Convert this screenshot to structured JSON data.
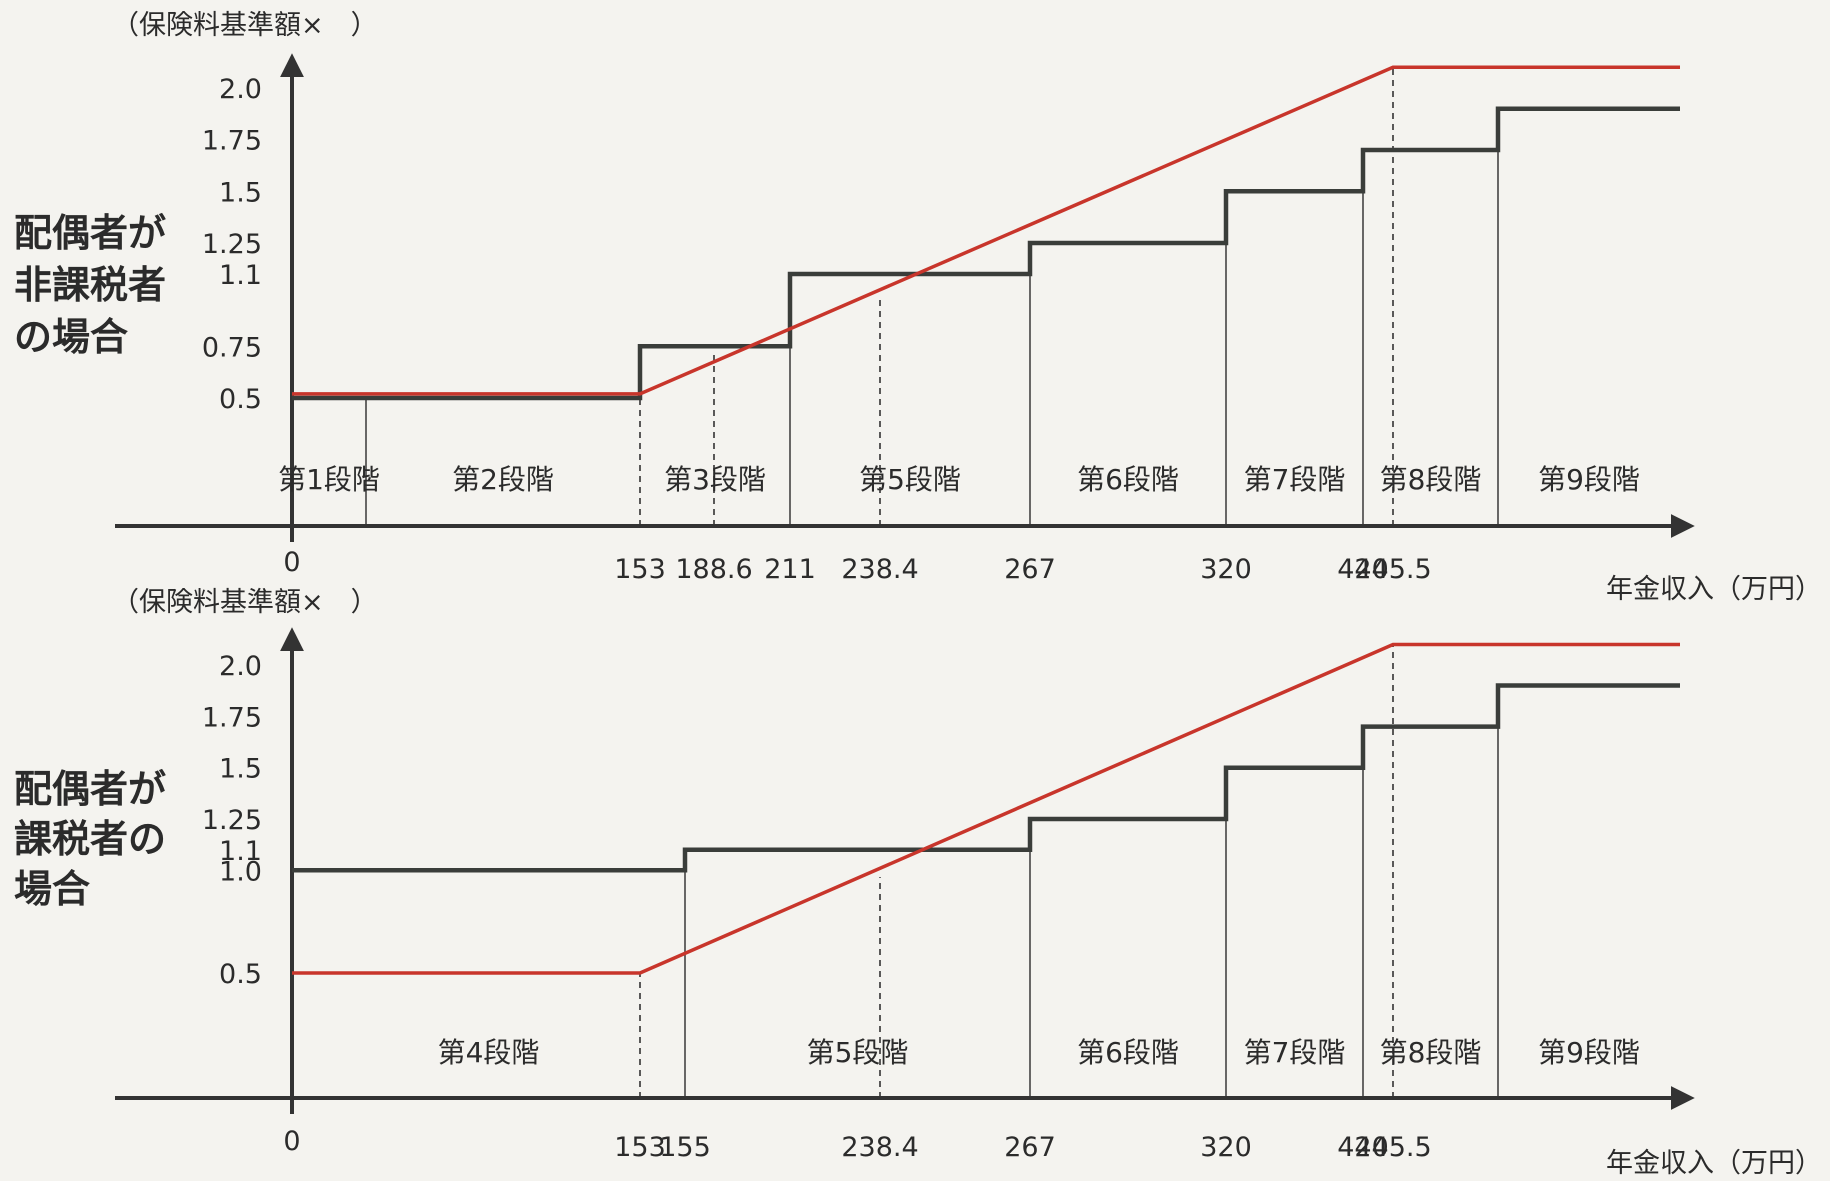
{
  "chart_data": [
    {
      "type": "line",
      "side_label": [
        "配偶者が",
        "非課税者",
        "の場合"
      ],
      "ylabel": "（保険料基準額×　）",
      "xlabel": "年金収入（万円）",
      "y_ticks": [
        {
          "value": 0.5,
          "label": "0.5"
        },
        {
          "value": 0.75,
          "label": "0.75"
        },
        {
          "value": 1.1,
          "label": "1.1"
        },
        {
          "value": 1.25,
          "label": "1.25"
        },
        {
          "value": 1.5,
          "label": "1.5"
        },
        {
          "value": 1.75,
          "label": "1.75"
        },
        {
          "value": 2.0,
          "label": "2.0"
        }
      ],
      "x_ticks": [
        {
          "value": 0,
          "label": "0"
        },
        {
          "value": 153,
          "label": "153"
        },
        {
          "value": 188.6,
          "label": "188.6"
        },
        {
          "value": 211,
          "label": "211"
        },
        {
          "value": 238.4,
          "label": "238.4"
        },
        {
          "value": 267,
          "label": "267"
        },
        {
          "value": 320,
          "label": "320"
        },
        {
          "value": 420,
          "label": "420"
        },
        {
          "value": 445.5,
          "label": "445.5"
        }
      ],
      "series": [
        {
          "color": "#3a3d3a",
          "shape": "step",
          "points": [
            [
              0,
              0.5
            ],
            [
              153,
              0.5
            ],
            [
              153,
              0.75
            ],
            [
              211,
              0.75
            ],
            [
              211,
              1.1
            ],
            [
              267,
              1.1
            ],
            [
              267,
              1.25
            ],
            [
              320,
              1.25
            ],
            [
              320,
              1.5
            ],
            [
              420,
              1.5
            ],
            [
              420,
              1.7
            ],
            [
              525,
              1.7
            ],
            [
              525,
              1.9
            ],
            [
              650,
              1.9
            ]
          ]
        },
        {
          "color": "#c8352b",
          "shape": "line",
          "points": [
            [
              0,
              0.52
            ],
            [
              153,
              0.52
            ],
            [
              445.5,
              2.1
            ],
            [
              650,
              2.1
            ]
          ]
        }
      ],
      "stages": [
        {
          "label": "第1段階",
          "from": 0,
          "to": 30
        },
        {
          "label": "第2段階",
          "from": 30,
          "to": 153
        },
        {
          "label": "第3段階",
          "from": 153,
          "to": 211
        },
        {
          "label": "第5段階",
          "from": 211,
          "to": 267
        },
        {
          "label": "第6段階",
          "from": 267,
          "to": 320
        },
        {
          "label": "第7段階",
          "from": 320,
          "to": 420
        },
        {
          "label": "第8段階",
          "from": 420,
          "to": 525
        },
        {
          "label": "第9段階",
          "from": 525,
          "to": 650
        }
      ],
      "dashed_guides": [
        153,
        188.6,
        238.4,
        445.5
      ],
      "solid_guides": [
        30,
        211,
        267,
        320,
        420,
        525
      ]
    },
    {
      "type": "line",
      "side_label": [
        "配偶者が",
        "課税者の",
        "場合"
      ],
      "ylabel": "（保険料基準額×　）",
      "xlabel": "年金収入（万円）",
      "y_ticks": [
        {
          "value": 0.5,
          "label": "0.5"
        },
        {
          "value": 1.0,
          "label": "1.0"
        },
        {
          "value": 1.1,
          "label": "1.1"
        },
        {
          "value": 1.25,
          "label": "1.25"
        },
        {
          "value": 1.5,
          "label": "1.5"
        },
        {
          "value": 1.75,
          "label": "1.75"
        },
        {
          "value": 2.0,
          "label": "2.0"
        }
      ],
      "x_ticks": [
        {
          "value": 0,
          "label": "0"
        },
        {
          "value": 153,
          "label": "153"
        },
        {
          "value": 155,
          "label": "155"
        },
        {
          "value": 238.4,
          "label": "238.4"
        },
        {
          "value": 267,
          "label": "267"
        },
        {
          "value": 320,
          "label": "320"
        },
        {
          "value": 420,
          "label": "420"
        },
        {
          "value": 445.5,
          "label": "445.5"
        }
      ],
      "series": [
        {
          "color": "#3a3d3a",
          "shape": "step",
          "points": [
            [
              0,
              1.0
            ],
            [
              155,
              1.0
            ],
            [
              155,
              1.1
            ],
            [
              267,
              1.1
            ],
            [
              267,
              1.25
            ],
            [
              320,
              1.25
            ],
            [
              320,
              1.5
            ],
            [
              420,
              1.5
            ],
            [
              420,
              1.7
            ],
            [
              525,
              1.7
            ],
            [
              525,
              1.9
            ],
            [
              650,
              1.9
            ]
          ]
        },
        {
          "color": "#c8352b",
          "shape": "line",
          "points": [
            [
              0,
              0.5
            ],
            [
              153,
              0.5
            ],
            [
              445.5,
              2.1
            ],
            [
              650,
              2.1
            ]
          ]
        }
      ],
      "stages": [
        {
          "label": "第4段階",
          "from": 0,
          "to": 155
        },
        {
          "label": "第5段階",
          "from": 155,
          "to": 267
        },
        {
          "label": "第6段階",
          "from": 267,
          "to": 320
        },
        {
          "label": "第7段階",
          "from": 320,
          "to": 420
        },
        {
          "label": "第8段階",
          "from": 420,
          "to": 525
        },
        {
          "label": "第9段階",
          "from": 525,
          "to": 650
        }
      ],
      "dashed_guides": [
        153,
        238.4,
        445.5
      ],
      "solid_guides": [
        155,
        267,
        320,
        420,
        525
      ]
    }
  ]
}
